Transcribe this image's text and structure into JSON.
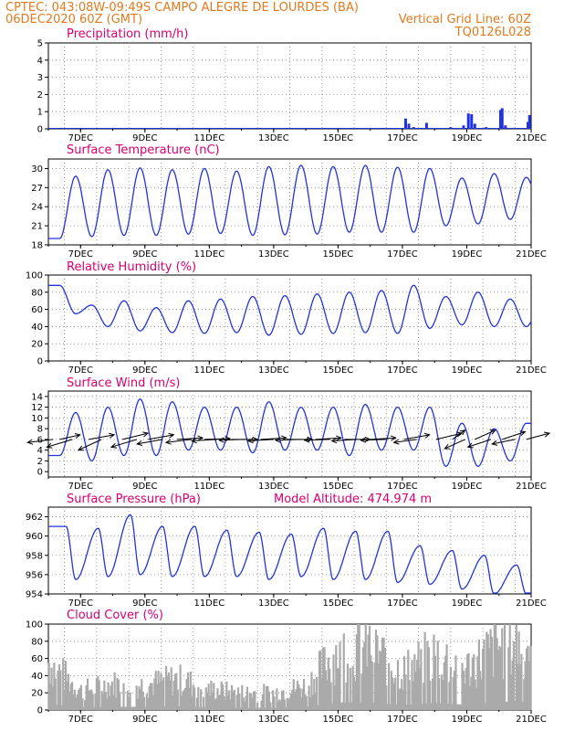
{
  "header": {
    "line1": "CPTEC:   043:08W-09:49S   CAMPO ALEGRE DE LOURDES (BA)",
    "line2_left": "06DEC2020 60Z (GMT)",
    "line2_right": "Vertical Grid Line: 60Z",
    "line3_right": "TQ0126L028"
  },
  "colors": {
    "header": "#e07a1f",
    "title": "#d6006e",
    "series": "#2233dd",
    "cloud": "#aaaaaa",
    "wind_vector": "#000000"
  },
  "chart_data": [
    {
      "id": "precip",
      "type": "bar",
      "title": "Precipitation (mm/h)",
      "yticks": [
        0,
        1,
        2,
        3,
        4,
        5
      ],
      "ylim": [
        0,
        5
      ],
      "xticks": [
        "7DEC",
        "9DEC",
        "11DEC",
        "13DEC",
        "15DEC",
        "17DEC",
        "19DEC",
        "21DEC"
      ],
      "xlim_days": [
        6.0,
        21.0
      ],
      "grid": true,
      "bars": [
        {
          "x": 17.1,
          "y": 0.6
        },
        {
          "x": 17.2,
          "y": 0.3
        },
        {
          "x": 17.35,
          "y": 0.1
        },
        {
          "x": 17.75,
          "y": 0.35
        },
        {
          "x": 18.5,
          "y": 0.1
        },
        {
          "x": 18.9,
          "y": 0.2
        },
        {
          "x": 19.05,
          "y": 0.9
        },
        {
          "x": 19.15,
          "y": 0.85
        },
        {
          "x": 19.25,
          "y": 0.3
        },
        {
          "x": 19.6,
          "y": 0.1
        },
        {
          "x": 20.05,
          "y": 1.1
        },
        {
          "x": 20.1,
          "y": 1.2
        },
        {
          "x": 20.2,
          "y": 0.2
        },
        {
          "x": 20.9,
          "y": 0.4
        },
        {
          "x": 20.95,
          "y": 0.8
        }
      ]
    },
    {
      "id": "temperature",
      "type": "line",
      "title": "Surface Temperature (nC)",
      "yticks": [
        18,
        21,
        24,
        27,
        30
      ],
      "ylim": [
        18,
        31.5
      ],
      "xticks": [
        "7DEC",
        "9DEC",
        "11DEC",
        "13DEC",
        "15DEC",
        "17DEC",
        "19DEC",
        "21DEC"
      ],
      "xlim_days": [
        6.0,
        21.0
      ],
      "grid": true,
      "diurnal": {
        "maxes": [
          28.8,
          29.8,
          30.1,
          29.8,
          30.0,
          29.6,
          30.3,
          30.5,
          30.3,
          30.5,
          30.2,
          30.0,
          28.5,
          29.2,
          28.6
        ],
        "mins": [
          19.0,
          19.3,
          19.5,
          19.5,
          19.7,
          19.8,
          19.5,
          19.6,
          19.7,
          20.0,
          20.0,
          20.0,
          21.0,
          21.3,
          22.0,
          23.0
        ]
      }
    },
    {
      "id": "humidity",
      "type": "line",
      "title": "Relative Humidity (%)",
      "yticks": [
        0,
        20,
        40,
        60,
        80,
        100
      ],
      "ylim": [
        0,
        100
      ],
      "xticks": [
        "7DEC",
        "9DEC",
        "11DEC",
        "13DEC",
        "15DEC",
        "17DEC",
        "19DEC",
        "21DEC"
      ],
      "xlim_days": [
        6.0,
        21.0
      ],
      "grid": true,
      "diurnal": {
        "maxes": [
          88,
          65,
          70,
          62,
          70,
          72,
          75,
          76,
          78,
          80,
          82,
          88,
          75,
          80,
          72,
          70
        ],
        "mins": [
          55,
          40,
          35,
          33,
          32,
          33,
          30,
          31,
          32,
          33,
          32,
          38,
          42,
          40,
          40
        ]
      }
    },
    {
      "id": "wind",
      "type": "line",
      "title": "Surface Wind (m/s)",
      "yticks": [
        0,
        2,
        4,
        6,
        8,
        10,
        12,
        14
      ],
      "ylim": [
        -1,
        15
      ],
      "xticks": [
        "7DEC",
        "9DEC",
        "11DEC",
        "13DEC",
        "15DEC",
        "17DEC",
        "19DEC",
        "21DEC"
      ],
      "xlim_days": [
        6.0,
        21.0
      ],
      "grid": true,
      "diurnal": {
        "maxes": [
          11,
          12,
          13.5,
          13,
          12,
          12,
          13,
          12,
          12,
          12.5,
          12,
          12,
          9,
          8,
          9
        ],
        "mins": [
          3,
          2,
          3,
          3,
          4,
          4,
          3.5,
          4,
          4,
          3,
          4,
          4,
          1,
          1,
          2
        ]
      },
      "vectors": [
        {
          "x": 6.15,
          "u": -1.0,
          "v": -0.2
        },
        {
          "x": 6.35,
          "u": 0.8,
          "v": 0.3
        },
        {
          "x": 6.75,
          "u": -1.0,
          "v": -0.5
        },
        {
          "x": 7.25,
          "u": 1.0,
          "v": 0.3
        },
        {
          "x": 7.65,
          "u": -0.9,
          "v": -0.7
        },
        {
          "x": 8.3,
          "u": 1.0,
          "v": 0.4
        },
        {
          "x": 8.75,
          "u": -1.0,
          "v": -0.5
        },
        {
          "x": 9.1,
          "u": 1.0,
          "v": 0.3
        },
        {
          "x": 9.55,
          "u": -1.0,
          "v": -0.3
        },
        {
          "x": 10.0,
          "u": 1.0,
          "v": 0.1
        },
        {
          "x": 10.45,
          "u": -1.0,
          "v": -0.2
        },
        {
          "x": 10.85,
          "u": 1.0,
          "v": 0.05
        },
        {
          "x": 11.25,
          "u": -1.0,
          "v": -0.1
        },
        {
          "x": 11.7,
          "u": 1.0,
          "v": 0.0
        },
        {
          "x": 12.1,
          "u": -1.0,
          "v": -0.05
        },
        {
          "x": 12.6,
          "u": 1.0,
          "v": 0.1
        },
        {
          "x": 13.0,
          "u": -1.0,
          "v": -0.1
        },
        {
          "x": 13.4,
          "u": 1.0,
          "v": 0.0
        },
        {
          "x": 13.85,
          "u": -1.0,
          "v": -0.05
        },
        {
          "x": 14.3,
          "u": 1.0,
          "v": 0.1
        },
        {
          "x": 14.75,
          "u": -1.0,
          "v": -0.05
        },
        {
          "x": 15.2,
          "u": 1.0,
          "v": 0.0
        },
        {
          "x": 15.6,
          "u": -1.0,
          "v": -0.1
        },
        {
          "x": 16.0,
          "u": 1.0,
          "v": 0.1
        },
        {
          "x": 16.5,
          "u": -1.0,
          "v": -0.05
        },
        {
          "x": 17.05,
          "u": 1.0,
          "v": 0.3
        },
        {
          "x": 17.45,
          "u": -0.9,
          "v": -0.2
        },
        {
          "x": 18.05,
          "u": 1.0,
          "v": 0.4
        },
        {
          "x": 18.55,
          "u": 0.5,
          "v": 0.6
        },
        {
          "x": 18.95,
          "u": -0.8,
          "v": -0.6
        },
        {
          "x": 19.25,
          "u": 0.8,
          "v": 0.6
        },
        {
          "x": 19.75,
          "u": -0.9,
          "v": -0.5
        },
        {
          "x": 20.1,
          "u": 0.9,
          "v": 0.5
        },
        {
          "x": 20.5,
          "u": -0.9,
          "v": -0.3
        },
        {
          "x": 20.85,
          "u": 0.9,
          "v": 0.4
        }
      ]
    },
    {
      "id": "pressure",
      "type": "line",
      "title": "Surface Pressure (hPa)",
      "annotation": "Model Altitude: 474.974 m",
      "yticks": [
        954,
        956,
        958,
        960,
        962
      ],
      "ylim": [
        954,
        963
      ],
      "xticks": [
        "7DEC",
        "9DEC",
        "11DEC",
        "13DEC",
        "15DEC",
        "17DEC",
        "19DEC",
        "21DEC"
      ],
      "xlim_days": [
        6.0,
        21.0
      ],
      "grid": true,
      "diurnal": {
        "maxes": [
          961.0,
          960.8,
          962.2,
          961.0,
          961.0,
          960.6,
          960.4,
          960.2,
          960.8,
          960.5,
          960.5,
          959.0,
          958.5,
          958.0,
          957.0
        ],
        "mins": [
          955.5,
          955.8,
          956.0,
          955.8,
          955.8,
          955.8,
          955.5,
          955.8,
          955.5,
          955.5,
          955.2,
          955.0,
          954.5,
          954.0,
          954.0
        ]
      }
    },
    {
      "id": "cloud",
      "type": "area",
      "title": "Cloud Cover (%)",
      "yticks": [
        0,
        20,
        40,
        60,
        80,
        100
      ],
      "ylim": [
        0,
        100
      ],
      "xticks": [
        "7DEC",
        "9DEC",
        "11DEC",
        "13DEC",
        "15DEC",
        "17DEC",
        "19DEC",
        "21DEC"
      ],
      "xlim_days": [
        6.0,
        21.0
      ],
      "grid": true,
      "level_by_day": [
        70,
        28,
        38,
        36,
        45,
        30,
        25,
        25,
        35,
        86,
        92,
        55,
        82,
        60,
        94,
        96
      ]
    }
  ]
}
